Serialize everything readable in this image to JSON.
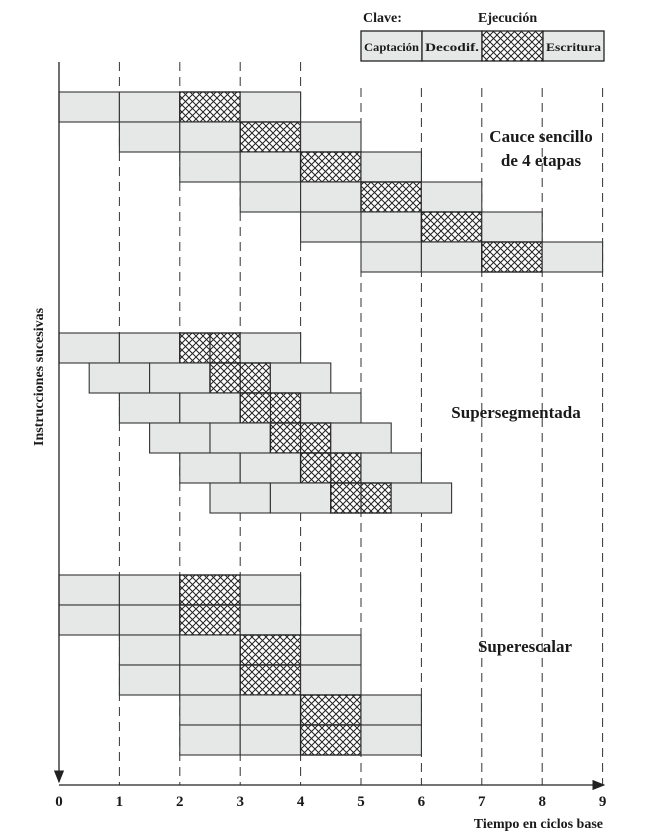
{
  "legend": {
    "title": "Clave:",
    "exec_label": "Ejecución",
    "cells": [
      {
        "stage": "fetch",
        "label": "Captación"
      },
      {
        "stage": "decode",
        "label": "Decodif."
      },
      {
        "stage": "execute",
        "label": ""
      },
      {
        "stage": "write",
        "label": "Escritura"
      }
    ]
  },
  "axes": {
    "ylabel": "Instrucciones sucesivas",
    "xlabel": "Tiempo en ciclos base",
    "xticks": [
      "0",
      "1",
      "2",
      "3",
      "4",
      "5",
      "6",
      "7",
      "8",
      "9"
    ]
  },
  "colors": {
    "stage_fill": "#e6e7e7",
    "stroke": "#333333"
  },
  "sections": [
    {
      "title_lines": [
        "Cauce sencillo",
        "de 4 etapas"
      ],
      "stage_duration": 1,
      "split_execute": false,
      "instructions": [
        0,
        1,
        2,
        3,
        4,
        5
      ]
    },
    {
      "title_lines": [
        "Supersegmentada"
      ],
      "stage_duration": 1,
      "split_execute": true,
      "instructions": [
        0,
        0.5,
        1,
        1.5,
        2,
        2.5
      ]
    },
    {
      "title_lines": [
        "Superescalar"
      ],
      "stage_duration": 1,
      "split_execute": false,
      "instructions": [
        0,
        0,
        1,
        1,
        2,
        2
      ]
    }
  ]
}
